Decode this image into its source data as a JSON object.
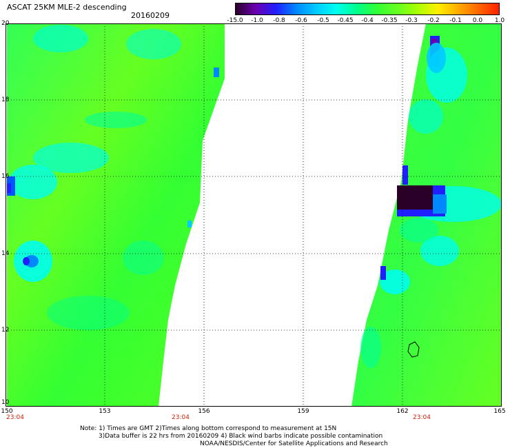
{
  "header": {
    "title": "ASCAT 25KM MLE-2 descending",
    "date": "20160209"
  },
  "colorbar": {
    "ticks": [
      "-15.0",
      "-1.0",
      "-0.8",
      "-0.6",
      "-0.5",
      "-0.45",
      "-0.4",
      "-0.35",
      "-0.3",
      "-0.2",
      "-0.1",
      "0.0",
      "1.0"
    ],
    "colors": [
      "#2a0028",
      "#6a00b0",
      "#2020ff",
      "#0088ff",
      "#00ccff",
      "#00ffee",
      "#00ff88",
      "#33ff33",
      "#66ff22",
      "#aaff00",
      "#ffee00",
      "#ffaa00",
      "#ff6600",
      "#ff2000"
    ]
  },
  "map": {
    "lat_labels": [
      "20",
      "18",
      "16",
      "14",
      "12",
      "10"
    ],
    "lon_labels": [
      "150",
      "153",
      "156",
      "159",
      "162",
      "165"
    ],
    "time_labels": [
      "23:04",
      "23:04",
      "23:04"
    ],
    "lon_range": [
      150,
      165
    ],
    "lat_range": [
      10,
      20
    ]
  },
  "footer": {
    "line1": "Note: 1) Times are GMT 2)Times along bottom correspond to measurement at 15N",
    "line2": "3)Data buffer is 22 hrs from 20160209 4) Black wind barbs indicate possible contamination",
    "line3": "NOAA/NESDIS/Center for Satellite Applications and Research"
  }
}
